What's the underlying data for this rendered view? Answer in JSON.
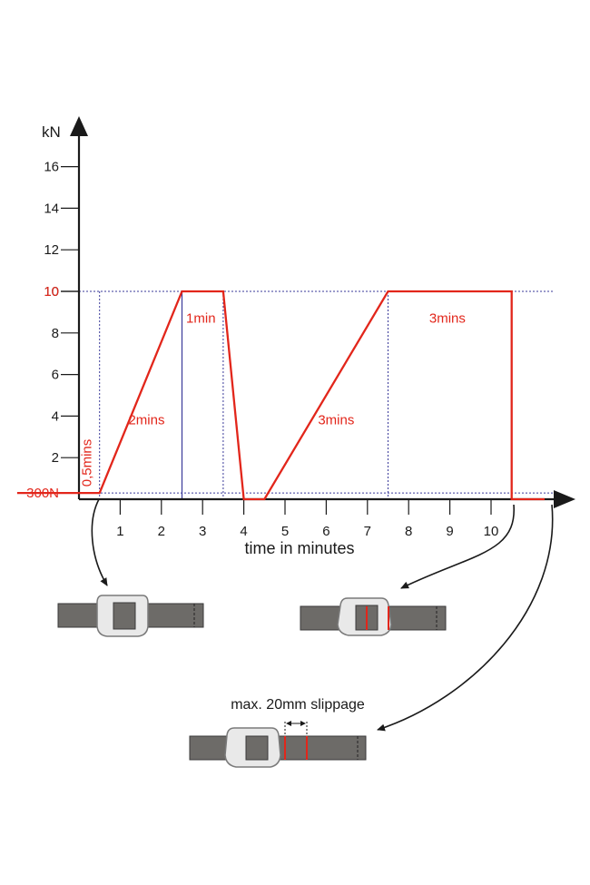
{
  "colors": {
    "load": "#e2261b",
    "axis": "#1a1a1a",
    "guide": "#3a3a9a",
    "strap": "#6d6b68",
    "buckle_fill": "#e9e9e9",
    "buckle_stroke": "#7a7a7a"
  },
  "chart_data": {
    "type": "line",
    "ylabel": "kN",
    "xlabel": "time in minutes",
    "xlim": [
      0,
      11.3
    ],
    "ylim": [
      0,
      17
    ],
    "x_ticks": [
      1,
      2,
      3,
      4,
      5,
      6,
      7,
      8,
      9,
      10
    ],
    "y_ticks": [
      2,
      4,
      6,
      8,
      10,
      12,
      14,
      16
    ],
    "y_highlight_ticks": [
      {
        "value": 10,
        "label": "10"
      },
      {
        "value": 0.3,
        "label": "300N"
      }
    ],
    "series": [
      {
        "points": [
          [
            -1.5,
            0.3
          ],
          [
            0.5,
            0.3
          ],
          [
            2.5,
            10
          ],
          [
            3.5,
            10
          ],
          [
            4,
            0
          ],
          [
            4.5,
            0
          ],
          [
            7.5,
            10
          ],
          [
            10.5,
            10
          ],
          [
            10.5,
            0
          ],
          [
            11.3,
            0
          ]
        ]
      }
    ],
    "reference_lines": {
      "horizontal": [
        10,
        0.3
      ],
      "vertical_dotted": [
        0.5,
        3.5,
        7.5
      ],
      "vertical_solid": [
        2.5
      ]
    },
    "annotations": [
      {
        "text": "0,5mins",
        "x": 0.3,
        "y": 0.6,
        "rotate": -90
      },
      {
        "text": "2mins",
        "x": 1.2,
        "y": 3.6
      },
      {
        "text": "1min",
        "x": 2.6,
        "y": 8.5
      },
      {
        "text": "3mins",
        "x": 5.8,
        "y": 3.6
      },
      {
        "text": "3mins",
        "x": 8.5,
        "y": 8.5
      }
    ]
  },
  "illustrations": {
    "slippage_label": "max. 20mm slippage"
  }
}
